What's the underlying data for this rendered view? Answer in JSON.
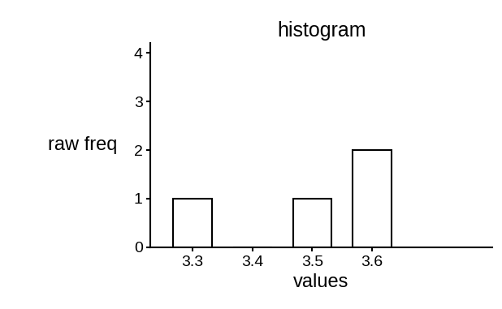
{
  "chart_data": {
    "type": "bar",
    "title": "histogram",
    "x_label": "values",
    "y_label": "raw freq",
    "x": [
      3.3,
      3.4,
      3.5,
      3.6
    ],
    "values": [
      1,
      0,
      1,
      2
    ],
    "color": "#ffffff",
    "xlim": [
      3.23,
      3.8
    ],
    "xticks": [
      3.3,
      3.4,
      3.5,
      3.6
    ],
    "ylim": [
      0,
      4.2
    ],
    "yticks": [
      0,
      1,
      2,
      3,
      4
    ],
    "grid": false
  }
}
